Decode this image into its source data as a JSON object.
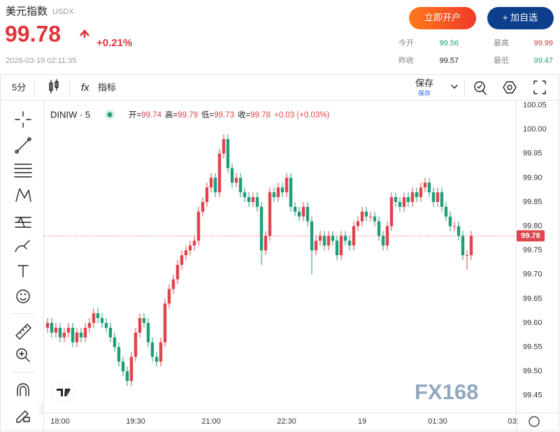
{
  "header": {
    "title": "美元指数",
    "code": "USDX",
    "price": 99.78,
    "change": "+0.21%",
    "time": "2026-03-19 02:11:35",
    "buttons": [
      "立即开户",
      "+ 加自选"
    ],
    "stats": [
      {
        "label": "今开",
        "value": 99.56
      },
      {
        "label": "最高",
        "value": 99.99
      },
      {
        "label": "昨收",
        "value": 99.57
      },
      {
        "label": "最低",
        "value": 99.47
      }
    ]
  },
  "toolbar": {
    "interval": "5分",
    "indicators": "指标",
    "save": "保存",
    "save_sub": "保存"
  },
  "watermark": "FX168",
  "chart_data": {
    "type": "candlestick",
    "symbol": "DINIW · 5",
    "legend": {
      "labels": [
        "开=",
        "高=",
        "低=",
        "收="
      ],
      "change": "+0.03 (+0.03%)"
    },
    "up_color": "#e0454d",
    "down_color": "#1f9e7a",
    "grid": false,
    "open": [
      99.59,
      99.6,
      99.58,
      99.59,
      99.57,
      99.58,
      99.59,
      99.56,
      99.58,
      99.57,
      99.59,
      99.6,
      99.62,
      99.61,
      99.6,
      99.59,
      99.57,
      99.55,
      99.52,
      99.5,
      99.48,
      99.53,
      99.58,
      99.61,
      99.6,
      99.56,
      99.53,
      99.52,
      99.56,
      99.64,
      99.67,
      99.69,
      99.72,
      99.74,
      99.75,
      99.76,
      99.77,
      99.83,
      99.85,
      99.88,
      99.9,
      99.87,
      99.95,
      99.98,
      99.92,
      99.89,
      99.9,
      99.87,
      99.86,
      99.85,
      99.86,
      99.84,
      99.75,
      99.78,
      99.87,
      99.86,
      99.88,
      99.87,
      99.9,
      99.84,
      99.83,
      99.82,
      99.84,
      99.81,
      99.75,
      99.77,
      99.78,
      99.76,
      99.78,
      99.77,
      99.74,
      99.78,
      99.77,
      99.76,
      99.8,
      99.81,
      99.83,
      99.82,
      99.82,
      99.81,
      99.78,
      99.76,
      99.8,
      99.86,
      99.85,
      99.84,
      99.86,
      99.85,
      99.87,
      99.86,
      99.88,
      99.89,
      99.87,
      99.85,
      99.87,
      99.84,
      99.82,
      99.8,
      99.8,
      99.78,
      99.74,
      99.74
    ],
    "high": [
      99.61,
      99.61,
      99.6,
      99.6,
      99.59,
      99.6,
      99.6,
      99.59,
      99.59,
      99.6,
      99.61,
      99.63,
      99.63,
      99.62,
      99.61,
      99.6,
      99.58,
      99.56,
      99.53,
      99.51,
      99.54,
      99.59,
      99.62,
      99.62,
      99.61,
      99.57,
      99.54,
      99.57,
      99.65,
      99.68,
      99.7,
      99.73,
      99.75,
      99.76,
      99.77,
      99.78,
      99.84,
      99.86,
      99.89,
      99.91,
      99.91,
      99.96,
      99.99,
      99.99,
      99.93,
      99.91,
      99.91,
      99.88,
      99.87,
      99.87,
      99.87,
      99.85,
      99.79,
      99.88,
      99.88,
      99.89,
      99.89,
      99.91,
      99.91,
      99.85,
      99.84,
      99.85,
      99.85,
      99.82,
      99.78,
      99.79,
      99.79,
      99.79,
      99.79,
      99.78,
      99.79,
      99.79,
      99.78,
      99.81,
      99.82,
      99.84,
      99.84,
      99.83,
      99.83,
      99.82,
      99.79,
      99.81,
      99.87,
      99.87,
      99.86,
      99.87,
      99.87,
      99.88,
      99.88,
      99.89,
      99.9,
      99.9,
      99.88,
      99.88,
      99.88,
      99.85,
      99.83,
      99.81,
      99.81,
      99.79,
      99.75,
      99.79
    ],
    "low": [
      99.58,
      99.57,
      99.57,
      99.56,
      99.56,
      99.57,
      99.55,
      99.55,
      99.56,
      99.56,
      99.58,
      99.59,
      99.6,
      99.59,
      99.58,
      99.56,
      99.54,
      99.51,
      99.49,
      99.47,
      99.47,
      99.52,
      99.57,
      99.59,
      99.55,
      99.52,
      99.51,
      99.51,
      99.55,
      99.63,
      99.66,
      99.68,
      99.71,
      99.73,
      99.74,
      99.75,
      99.76,
      99.82,
      99.84,
      99.87,
      99.86,
      99.86,
      99.94,
      99.91,
      99.88,
      99.88,
      99.86,
      99.85,
      99.84,
      99.84,
      99.83,
      99.72,
      99.74,
      99.77,
      99.85,
      99.85,
      99.86,
      99.86,
      99.83,
      99.82,
      99.81,
      99.81,
      99.8,
      99.7,
      99.74,
      99.76,
      99.75,
      99.75,
      99.76,
      99.73,
      99.73,
      99.76,
      99.75,
      99.75,
      99.79,
      99.8,
      99.81,
      99.81,
      99.8,
      99.77,
      99.75,
      99.75,
      99.79,
      99.84,
      99.83,
      99.83,
      99.84,
      99.84,
      99.85,
      99.85,
      99.87,
      99.86,
      99.84,
      99.84,
      99.83,
      99.81,
      99.79,
      99.79,
      99.77,
      99.73,
      99.71,
      99.73
    ],
    "close": [
      99.6,
      99.58,
      99.59,
      99.57,
      99.58,
      99.59,
      99.56,
      99.58,
      99.57,
      99.59,
      99.6,
      99.62,
      99.61,
      99.6,
      99.59,
      99.57,
      99.55,
      99.52,
      99.5,
      99.48,
      99.53,
      99.58,
      99.61,
      99.6,
      99.56,
      99.53,
      99.52,
      99.56,
      99.64,
      99.67,
      99.69,
      99.72,
      99.74,
      99.75,
      99.76,
      99.77,
      99.83,
      99.85,
      99.88,
      99.9,
      99.87,
      99.95,
      99.98,
      99.92,
      99.89,
      99.9,
      99.87,
      99.86,
      99.85,
      99.86,
      99.84,
      99.75,
      99.78,
      99.87,
      99.86,
      99.88,
      99.87,
      99.9,
      99.84,
      99.83,
      99.82,
      99.84,
      99.81,
      99.75,
      99.77,
      99.78,
      99.76,
      99.78,
      99.77,
      99.74,
      99.78,
      99.77,
      99.76,
      99.8,
      99.81,
      99.83,
      99.82,
      99.82,
      99.81,
      99.78,
      99.76,
      99.8,
      99.86,
      99.85,
      99.84,
      99.86,
      99.85,
      99.87,
      99.86,
      99.88,
      99.89,
      99.87,
      99.85,
      99.87,
      99.84,
      99.82,
      99.8,
      99.8,
      99.78,
      99.74,
      99.74,
      99.78
    ],
    "xlim": [
      -0.83,
      111.67
    ],
    "xticks": [
      {
        "value": 3,
        "label": "18:00"
      },
      {
        "value": 21,
        "label": "19:30"
      },
      {
        "value": 39,
        "label": "21:00"
      },
      {
        "value": 57,
        "label": "22:30"
      },
      {
        "value": 75,
        "label": "19"
      },
      {
        "value": 93,
        "label": "01:30"
      },
      {
        "value": 111,
        "label": "03:"
      }
    ],
    "ylim": [
      99.415,
      100.058
    ],
    "yticks": [
      100.05,
      {
        "value": 100,
        "label": "100.00"
      },
      99.95,
      {
        "value": 99.9,
        "label": "99.90"
      },
      99.85,
      {
        "value": 99.8,
        "label": "99.80"
      },
      99.75,
      {
        "value": 99.7,
        "label": "99.70"
      },
      99.65,
      {
        "value": 99.6,
        "label": "99.60"
      },
      99.55,
      {
        "value": 99.5,
        "label": "99.50"
      },
      99.45
    ]
  }
}
